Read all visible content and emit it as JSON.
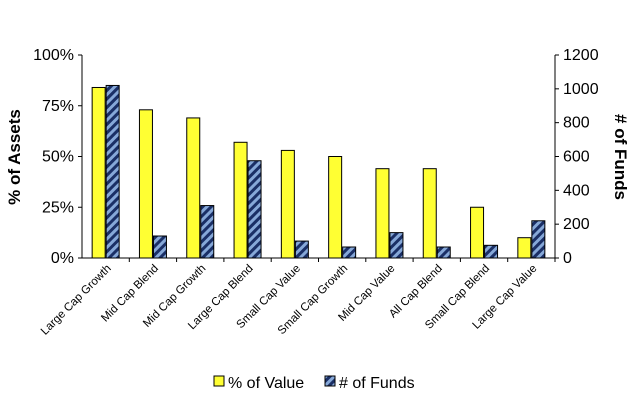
{
  "chart_data": {
    "type": "bar",
    "categories": [
      "Large Cap Growth",
      "Mid Cap Blend",
      "Mid Cap Growth",
      "Large Cap Blend",
      "Small Cap Value",
      "Small Cap Growth",
      "Mid Cap Value",
      "All Cap Blend",
      "Small Cap Blend",
      "Large Cap Value"
    ],
    "series": [
      {
        "name": "% of Value",
        "axis": "left",
        "values": [
          84,
          73,
          69,
          57,
          53,
          50,
          44,
          44,
          25,
          10
        ],
        "color": "#ffff33"
      },
      {
        "name": "# of Funds",
        "axis": "right",
        "values": [
          1020,
          130,
          310,
          575,
          100,
          65,
          150,
          65,
          75,
          220
        ],
        "color": "#1f3f7a"
      }
    ],
    "ylabel": "% of Assets",
    "y2label": "# of Funds",
    "ylim": [
      0,
      100
    ],
    "y2lim": [
      0,
      1200
    ],
    "y_ticks": [
      "0%",
      "25%",
      "50%",
      "75%",
      "100%"
    ],
    "y2_ticks": [
      "0",
      "200",
      "400",
      "600",
      "800",
      "1000",
      "1200"
    ],
    "grid": false,
    "legend_position": "bottom"
  }
}
